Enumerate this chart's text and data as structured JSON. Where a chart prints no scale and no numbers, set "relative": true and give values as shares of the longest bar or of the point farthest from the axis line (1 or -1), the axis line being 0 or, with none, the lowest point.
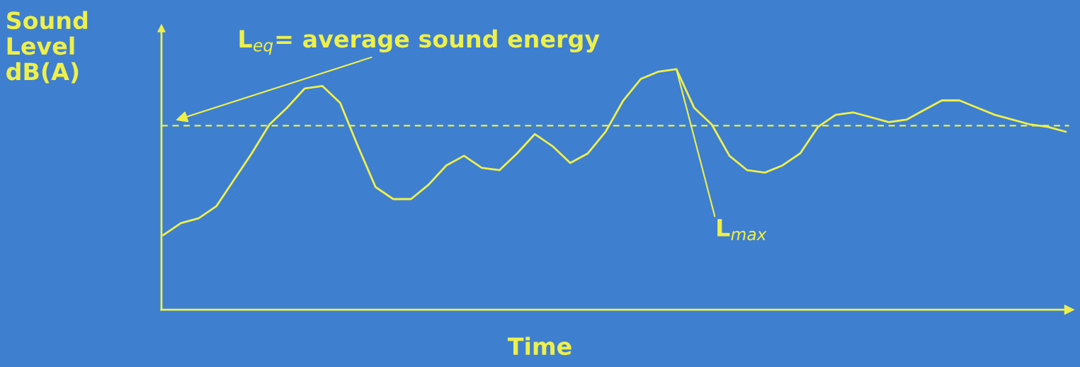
{
  "chart_data": {
    "type": "line",
    "relative": true,
    "xlabel": "Time",
    "ylabel": "Sound\nLevel\ndB(A)",
    "categories": [
      null,
      null,
      null,
      null,
      null,
      null,
      null,
      null,
      null,
      null,
      null,
      null,
      null,
      null,
      null,
      null,
      null,
      null,
      null,
      null,
      null,
      null,
      null,
      null,
      null,
      null,
      null,
      null,
      null,
      null,
      null,
      null,
      null,
      null,
      null,
      null,
      null,
      null,
      null,
      null,
      null,
      null,
      null,
      null,
      null,
      null,
      null,
      null,
      null,
      null,
      null,
      null
    ],
    "series": [
      {
        "color": "#eef04a",
        "values": [
          0.31,
          0.36,
          0.38,
          0.43,
          0.54,
          0.65,
          0.77,
          0.84,
          0.92,
          0.93,
          0.86,
          0.68,
          0.51,
          0.46,
          0.46,
          0.52,
          0.6,
          0.64,
          0.59,
          0.58,
          0.65,
          0.73,
          0.68,
          0.61,
          0.65,
          0.74,
          0.87,
          0.96,
          0.99,
          1.0,
          0.84,
          0.77,
          0.64,
          0.58,
          0.57,
          0.6,
          0.65,
          0.76,
          0.81,
          0.82,
          0.8,
          0.78,
          0.79,
          0.83,
          0.87,
          0.87,
          0.84,
          0.81,
          0.79,
          0.77,
          0.76,
          0.74
        ]
      }
    ],
    "ref_lines": [
      {
        "axis": "y",
        "value": 0.765,
        "label": "L$_{eq}$= average sound energy",
        "color": "#eef04a",
        "line_style": "dashed"
      }
    ],
    "annotations": [
      "L$_{max}$"
    ],
    "grid": false,
    "legend": false
  }
}
